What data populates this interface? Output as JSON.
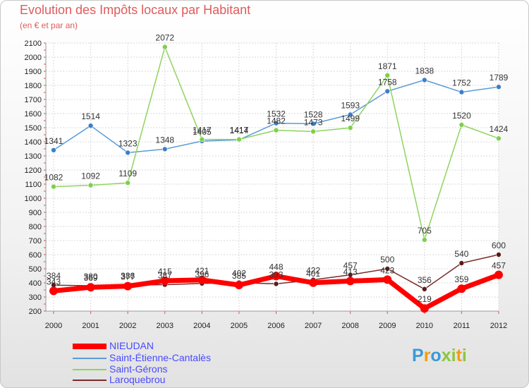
{
  "header": {
    "title": "Evolution des Impôts locaux par Habitant",
    "subtitle": "(en € et par an)"
  },
  "logo": {
    "text": "Proxiti"
  },
  "chart_data": {
    "type": "line",
    "title": "Evolution des Impôts locaux par Habitant",
    "subtitle": "(en € et par an)",
    "x": [
      2000,
      2001,
      2002,
      2003,
      2004,
      2005,
      2006,
      2007,
      2008,
      2009,
      2010,
      2011,
      2012
    ],
    "ylim": [
      200,
      2100
    ],
    "y_ticks": [
      200,
      300,
      400,
      500,
      600,
      700,
      800,
      900,
      1000,
      1100,
      1200,
      1300,
      1400,
      1500,
      1600,
      1700,
      1800,
      1900,
      2000,
      2100
    ],
    "grid": true,
    "legend_position": "bottom-left",
    "series": [
      {
        "name": "NIEUDAN",
        "color": "#ff0000",
        "values": [
          343,
          369,
          377,
          415,
          421,
          385,
          448,
          401,
          413,
          423,
          219,
          359,
          457
        ],
        "labels": [
          "343",
          "369",
          "377",
          "415",
          "421",
          "385",
          "448",
          "401",
          "413",
          "423",
          "219",
          "359",
          "457"
        ]
      },
      {
        "name": "Saint-Étienne-Cantalès",
        "color": "#5b9bd5",
        "values": [
          1341,
          1514,
          1323,
          1348,
          1405,
          1414,
          1532,
          1528,
          1593,
          1758,
          1838,
          1752,
          1789
        ],
        "labels": [
          "1341",
          "1514",
          "1323",
          "1348",
          "1405",
          "1414",
          "1532",
          "1528",
          "1593",
          "1758",
          "1838",
          "1752",
          "1789"
        ]
      },
      {
        "name": "Saint-Gérons",
        "color": "#7ed04b",
        "values": [
          1082,
          1092,
          1109,
          2072,
          1417,
          1417,
          1482,
          1473,
          1499,
          1871,
          705,
          1520,
          1424
        ],
        "labels": [
          "1082",
          "1092",
          "1109",
          "2072",
          "1417",
          "1417",
          "1482",
          "1473",
          "1499",
          "1871",
          "705",
          "1520",
          "1424"
        ]
      },
      {
        "name": "Laroquebrou",
        "color": "#7b2a2a",
        "values": [
          384,
          380,
          386,
          387,
          396,
          402,
          393,
          422,
          457,
          500,
          356,
          540,
          600
        ],
        "labels": [
          "384",
          "380",
          "386",
          "387",
          "396",
          "402",
          "393",
          "422",
          "457",
          "500",
          "356",
          "540",
          "600"
        ]
      }
    ]
  }
}
